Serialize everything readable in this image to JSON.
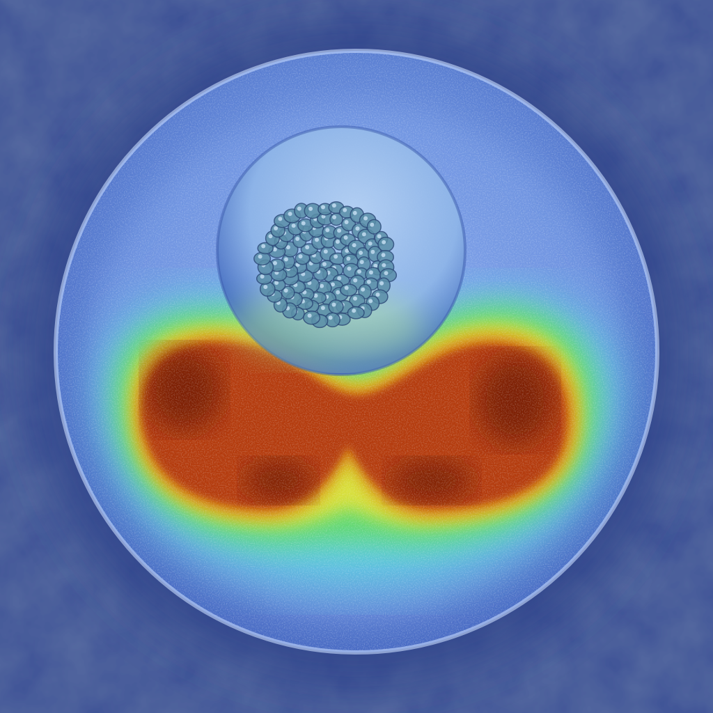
{
  "image": {
    "kind": "heatmap-overlay-photo",
    "colormap": "jet",
    "colors": {
      "background": "#3a4f95",
      "disc_outer": "#5f84d6",
      "disc_inner": "#8fb0f0",
      "hot_core": "#6a1800",
      "hot_mid": "#b43a0a",
      "warm": "#d87a10",
      "yellow": "#d8e03a",
      "green": "#62d96a",
      "cyan": "#58d8e0",
      "sphere": "#8fb6e8",
      "cluster": "#5a8ea8"
    }
  }
}
